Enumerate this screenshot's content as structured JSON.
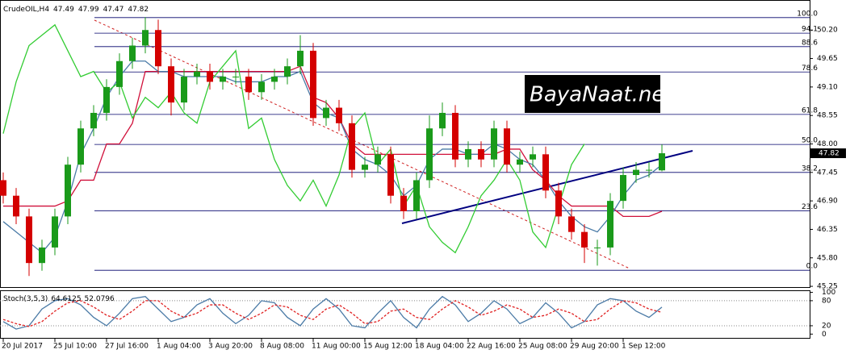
{
  "chart_data": [
    {
      "type": "candlestick",
      "title": "CrudeOIL,H4",
      "categories": [
        "20 Jul 2017",
        null,
        null,
        null,
        "25 Jul 10:00",
        null,
        null,
        null,
        "27 Jul 16:00",
        null,
        null,
        null,
        "1 Aug 04:00",
        null,
        null,
        null,
        "3 Aug 20:00",
        null,
        null,
        null,
        "8 Aug 08:00",
        null,
        null,
        null,
        "11 Aug 00:00",
        null,
        null,
        null,
        "15 Aug 12:00",
        null,
        null,
        null,
        "18 Aug 04:00",
        null,
        null,
        null,
        "22 Aug 16:00",
        null,
        null,
        null,
        "25 Aug 08:00",
        null,
        null,
        null,
        "29 Aug 20:00",
        null,
        null,
        null,
        "1 Sep 12:00",
        null,
        null,
        null
      ],
      "open": [
        47.3,
        47.0,
        46.6,
        45.7,
        46.0,
        46.6,
        47.6,
        48.3,
        48.6,
        49.1,
        49.6,
        49.9,
        50.2,
        49.5,
        48.8,
        49.3,
        49.4,
        49.2,
        49.3,
        49.3,
        49.0,
        49.2,
        49.3,
        49.5,
        49.8,
        48.5,
        48.7,
        48.4,
        47.5,
        47.6,
        47.8,
        47.0,
        46.7,
        47.3,
        48.3,
        48.6,
        47.7,
        47.9,
        47.7,
        48.3,
        47.6,
        47.7,
        47.8,
        47.1,
        46.6,
        46.3,
        46.0,
        46.0,
        46.9,
        47.4,
        47.5,
        47.49
      ],
      "high": [
        47.45,
        47.15,
        46.75,
        46.15,
        46.75,
        47.75,
        48.45,
        48.75,
        49.25,
        49.75,
        50.05,
        50.45,
        50.4,
        49.65,
        49.45,
        49.55,
        49.55,
        49.45,
        49.45,
        49.45,
        49.35,
        49.45,
        49.65,
        50.1,
        49.95,
        48.85,
        48.85,
        48.55,
        47.75,
        47.95,
        47.95,
        47.15,
        47.45,
        48.55,
        48.8,
        48.75,
        48.05,
        48.05,
        48.45,
        48.45,
        47.85,
        47.95,
        47.95,
        47.25,
        46.75,
        46.45,
        46.15,
        47.05,
        47.55,
        47.65,
        47.65,
        47.99
      ],
      "low": [
        46.85,
        46.45,
        45.45,
        45.55,
        45.85,
        46.45,
        47.45,
        48.15,
        48.45,
        48.95,
        49.45,
        49.75,
        49.35,
        48.55,
        48.65,
        49.15,
        49.05,
        49.05,
        49.15,
        48.85,
        48.85,
        49.05,
        49.15,
        49.35,
        48.35,
        48.35,
        48.25,
        47.35,
        47.35,
        47.45,
        46.85,
        46.55,
        46.55,
        47.15,
        48.15,
        47.55,
        47.55,
        47.55,
        47.55,
        47.45,
        47.45,
        47.55,
        46.95,
        46.45,
        46.15,
        45.7,
        45.65,
        45.85,
        46.75,
        47.25,
        47.35,
        47.47
      ],
      "close": [
        47.0,
        46.6,
        45.7,
        46.0,
        46.6,
        47.6,
        48.3,
        48.6,
        49.1,
        49.6,
        49.9,
        50.2,
        49.5,
        48.8,
        49.3,
        49.4,
        49.2,
        49.3,
        49.3,
        49.0,
        49.2,
        49.3,
        49.5,
        49.8,
        48.5,
        48.7,
        48.4,
        47.5,
        47.6,
        47.8,
        47.0,
        46.7,
        47.3,
        48.3,
        48.6,
        47.7,
        47.9,
        47.7,
        48.3,
        47.6,
        47.7,
        47.8,
        47.1,
        46.6,
        46.3,
        46.0,
        46.0,
        46.9,
        47.4,
        47.5,
        47.5,
        47.82
      ],
      "up_color": "#1a9a1a",
      "down_color": "#d40000",
      "series": [
        {
          "color": "#d0103a",
          "values": [
            46.8,
            46.8,
            46.8,
            46.8,
            46.8,
            46.9,
            47.3,
            47.3,
            48.0,
            48.0,
            48.4,
            49.4,
            49.4,
            49.4,
            49.4,
            49.4,
            49.4,
            49.4,
            49.4,
            49.4,
            49.4,
            49.4,
            49.4,
            49.5,
            48.9,
            48.8,
            48.5,
            48.0,
            47.8,
            47.8,
            47.8,
            47.8,
            47.8,
            47.8,
            47.8,
            47.8,
            47.8,
            47.8,
            47.8,
            47.9,
            47.9,
            47.5,
            47.3,
            47.0,
            46.8,
            46.8,
            46.8,
            46.8,
            46.6,
            46.6,
            46.6,
            46.7
          ]
        },
        {
          "color": "#4a7ba7",
          "values": [
            46.5,
            46.3,
            46.1,
            45.9,
            46.2,
            46.9,
            47.8,
            48.3,
            48.9,
            49.3,
            49.6,
            49.6,
            49.4,
            49.4,
            49.3,
            49.3,
            49.3,
            49.3,
            49.2,
            49.2,
            49.2,
            49.3,
            49.3,
            49.4,
            48.8,
            48.6,
            48.5,
            47.9,
            47.7,
            47.6,
            47.4,
            47.0,
            47.2,
            47.7,
            47.9,
            47.9,
            47.8,
            47.8,
            48.0,
            47.9,
            47.7,
            47.6,
            47.3,
            46.9,
            46.6,
            46.4,
            46.3,
            46.6,
            47.0,
            47.3,
            47.4,
            47.6
          ]
        },
        {
          "color": "#33cc33",
          "values": [
            48.2,
            49.2,
            49.9,
            50.1,
            50.3,
            49.8,
            49.3,
            49.4,
            49.0,
            49.2,
            48.5,
            48.9,
            48.7,
            49.0,
            48.6,
            48.4,
            49.2,
            49.5,
            49.8,
            48.3,
            48.5,
            47.7,
            47.2,
            46.9,
            47.3,
            46.8,
            47.4,
            48.3,
            48.6,
            47.6,
            47.9,
            46.8,
            47.2,
            46.4,
            46.1,
            45.9,
            46.4,
            47.0,
            47.3,
            47.7,
            47.3,
            46.3,
            46.0,
            46.8,
            47.6,
            48.0,
            null,
            null,
            null,
            null,
            null,
            null
          ]
        }
      ],
      "ylim": [
        45.22,
        50.78
      ],
      "yticks": [
        {
          "value": 50.2,
          "label": "50.20"
        },
        49.65,
        {
          "value": 49.1,
          "label": "49.10"
        },
        48.55,
        {
          "value": 48.0,
          "label": "48.00"
        },
        47.45,
        {
          "value": 46.9,
          "label": "46.90"
        },
        46.35,
        {
          "value": 45.8,
          "label": "45.80"
        },
        45.25
      ],
      "fib": {
        "color": "#00006b",
        "levels": [
          {
            "value": 100,
            "label": "100.0"
          },
          94.1,
          88.6,
          78.6,
          61.8,
          {
            "value": 50,
            "label": "50.0"
          },
          38.2,
          23.6,
          {
            "value": 0,
            "label": "0.0"
          }
        ],
        "prices": [
          50.44,
          50.14,
          49.88,
          49.39,
          48.57,
          47.99,
          47.45,
          46.71,
          45.56
        ]
      },
      "watermark": "BayaNaat.net"
    },
    {
      "type": "line",
      "title": "Stoch(3,5,3)",
      "series": [
        {
          "color": "#4a7aa6",
          "values": [
            30,
            12,
            20,
            60,
            80,
            85,
            70,
            40,
            20,
            50,
            85,
            90,
            60,
            30,
            40,
            70,
            85,
            50,
            25,
            45,
            80,
            75,
            40,
            20,
            60,
            85,
            60,
            20,
            15,
            50,
            80,
            40,
            15,
            60,
            90,
            70,
            30,
            50,
            80,
            60,
            25,
            40,
            75,
            50,
            15,
            30,
            70,
            85,
            80,
            55,
            40,
            64.6125
          ]
        },
        {
          "color": "#e02020",
          "dash": true,
          "values": [
            35,
            25,
            18,
            30,
            55,
            75,
            80,
            65,
            45,
            35,
            55,
            80,
            80,
            55,
            40,
            50,
            70,
            70,
            50,
            35,
            50,
            70,
            65,
            45,
            35,
            60,
            70,
            50,
            25,
            30,
            55,
            60,
            40,
            35,
            60,
            80,
            65,
            45,
            55,
            70,
            60,
            40,
            45,
            60,
            50,
            30,
            35,
            60,
            80,
            75,
            60,
            52.0796
          ]
        }
      ],
      "ylim": [
        -11,
        103
      ],
      "yticks": [
        100,
        80,
        20,
        0
      ],
      "levels": [
        80,
        20
      ]
    }
  ]
}
